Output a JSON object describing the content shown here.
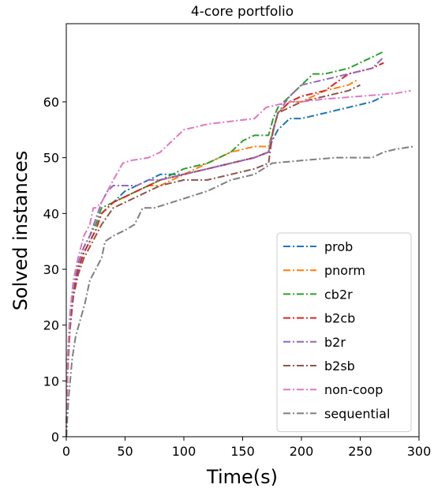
{
  "chart_data": {
    "type": "line",
    "title": "4-core portfolio",
    "xlabel": "Time(s)",
    "ylabel": "Solved instances",
    "xlim": [
      0,
      300
    ],
    "ylim": [
      0,
      74
    ],
    "xticks": [
      0,
      50,
      100,
      150,
      200,
      250,
      300
    ],
    "yticks": [
      0,
      10,
      20,
      30,
      40,
      50,
      60
    ],
    "grid": false,
    "legend_position": "bottom-right",
    "line_style": "dash-dot",
    "series": [
      {
        "name": "prob",
        "color": "#1f77b4",
        "x": [
          0,
          1,
          3,
          6,
          10,
          15,
          20,
          25,
          30,
          40,
          50,
          60,
          70,
          80,
          100,
          120,
          140,
          160,
          172,
          175,
          180,
          190,
          200,
          220,
          240,
          260,
          270
        ],
        "y": [
          0,
          12,
          20,
          26,
          30,
          33,
          35,
          37,
          40,
          42,
          44,
          45,
          46,
          47,
          47,
          48,
          49,
          50,
          51,
          53,
          55,
          57,
          57,
          58,
          59,
          60,
          61
        ]
      },
      {
        "name": "pnorm",
        "color": "#ff7f0e",
        "x": [
          0,
          1,
          3,
          6,
          10,
          15,
          20,
          25,
          30,
          40,
          50,
          60,
          70,
          80,
          100,
          120,
          140,
          160,
          172,
          176,
          180,
          190,
          200,
          220,
          240,
          248
        ],
        "y": [
          0,
          12,
          20,
          26,
          30,
          33,
          35,
          37,
          40,
          42,
          43,
          44,
          45,
          45,
          47,
          49,
          51,
          52,
          52,
          55,
          58,
          60,
          60,
          62,
          63,
          64
        ]
      },
      {
        "name": "cb2r",
        "color": "#2ca02c",
        "x": [
          0,
          1,
          3,
          6,
          10,
          15,
          20,
          25,
          30,
          40,
          50,
          60,
          70,
          80,
          100,
          120,
          140,
          150,
          160,
          172,
          176,
          180,
          190,
          200,
          210,
          220,
          240,
          260,
          270
        ],
        "y": [
          0,
          12,
          21,
          27,
          31,
          34,
          36,
          38,
          41,
          42,
          43,
          44,
          45,
          46,
          48,
          49,
          51,
          53,
          54,
          54,
          57,
          59,
          61,
          63,
          65,
          65,
          66,
          68,
          69
        ]
      },
      {
        "name": "b2cb",
        "color": "#d62728",
        "x": [
          0,
          1,
          3,
          6,
          10,
          15,
          20,
          25,
          30,
          40,
          50,
          60,
          70,
          80,
          100,
          120,
          140,
          160,
          172,
          175,
          180,
          190,
          200,
          220,
          240,
          260,
          270
        ],
        "y": [
          0,
          12,
          20,
          26,
          30,
          33,
          35,
          37,
          40,
          42,
          43,
          44,
          45,
          46,
          47,
          48,
          49,
          50,
          51,
          54,
          58,
          60,
          61,
          62,
          65,
          66,
          67
        ]
      },
      {
        "name": "b2r",
        "color": "#9467bd",
        "x": [
          0,
          1,
          3,
          6,
          10,
          15,
          20,
          25,
          30,
          35,
          40,
          50,
          60,
          70,
          80,
          100,
          120,
          140,
          160,
          172,
          176,
          180,
          190,
          200,
          220,
          240,
          260,
          270
        ],
        "y": [
          0,
          12,
          21,
          27,
          31,
          34,
          36,
          39,
          42,
          44,
          45,
          45,
          45,
          46,
          46,
          47,
          48,
          49,
          50,
          51,
          55,
          58,
          61,
          63,
          64,
          65,
          66,
          68
        ]
      },
      {
        "name": "b2sb",
        "color": "#8c564b",
        "x": [
          0,
          1,
          3,
          6,
          10,
          15,
          20,
          25,
          30,
          40,
          50,
          60,
          70,
          80,
          100,
          120,
          140,
          160,
          172,
          176,
          180,
          190,
          200,
          220,
          240,
          250
        ],
        "y": [
          0,
          11,
          19,
          25,
          29,
          32,
          34,
          36,
          38,
          41,
          42,
          43,
          44,
          45,
          46,
          46,
          47,
          48,
          49,
          55,
          58,
          59,
          60,
          61,
          62,
          63
        ]
      },
      {
        "name": "non-coop",
        "color": "#e377c2",
        "x": [
          0,
          1,
          3,
          6,
          10,
          15,
          20,
          23,
          25,
          30,
          35,
          40,
          48,
          55,
          70,
          80,
          90,
          100,
          120,
          160,
          170,
          180,
          190,
          200,
          220,
          250,
          280,
          293
        ],
        "y": [
          0,
          14,
          22,
          28,
          32,
          36,
          38,
          41,
          41,
          42,
          44,
          46,
          49,
          49.5,
          50,
          51,
          53,
          55,
          56,
          57,
          59,
          59.5,
          60,
          60,
          60.5,
          61,
          61.5,
          62
        ]
      },
      {
        "name": "sequential",
        "color": "#7f7f7f",
        "x": [
          0,
          2,
          5,
          8,
          12,
          16,
          20,
          25,
          30,
          33,
          40,
          50,
          58,
          65,
          75,
          90,
          105,
          120,
          140,
          160,
          175,
          200,
          230,
          250,
          260,
          270,
          280,
          295
        ],
        "y": [
          0,
          7,
          14,
          18,
          21,
          24,
          28,
          30,
          32,
          35,
          36,
          37,
          38,
          41,
          41,
          42,
          43,
          44,
          46,
          47,
          49,
          49.5,
          50,
          50,
          50,
          51,
          51.5,
          52
        ]
      }
    ]
  }
}
